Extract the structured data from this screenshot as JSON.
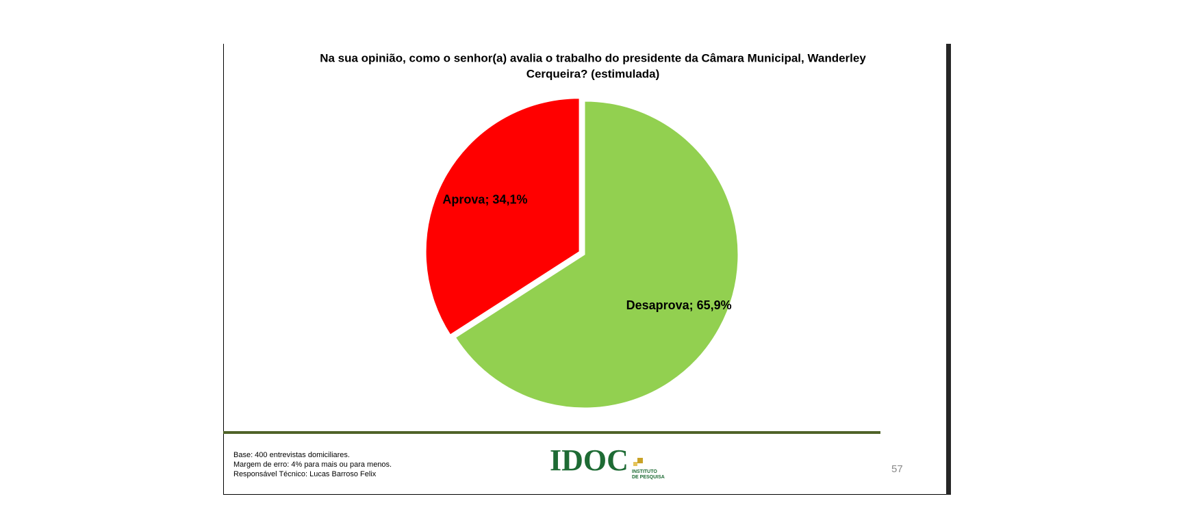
{
  "chart_data": {
    "type": "pie",
    "title": [
      "Na sua opinião, como o senhor(a) avalia o trabalho do presidente da Câmara Municipal, Wanderley",
      "Cerqueira?  (estimulada)"
    ],
    "values": [
      34.1,
      65.9
    ],
    "value_labels": [
      "Aprova; 34,1%",
      "Desaprova; 65,9%"
    ],
    "colors": [
      "#ff0000",
      "#92d050"
    ]
  },
  "footer": {
    "notes": [
      "Base: 400 entrevistas domiciliares.",
      "Margem de erro: 4% para mais ou para menos.",
      "Responsável Técnico: Lucas Barroso Felix"
    ],
    "logo": {
      "name": "IDOC",
      "subtitle": [
        "INSTITUTO",
        "DE PESQUISA"
      ]
    },
    "page_number": "57"
  }
}
